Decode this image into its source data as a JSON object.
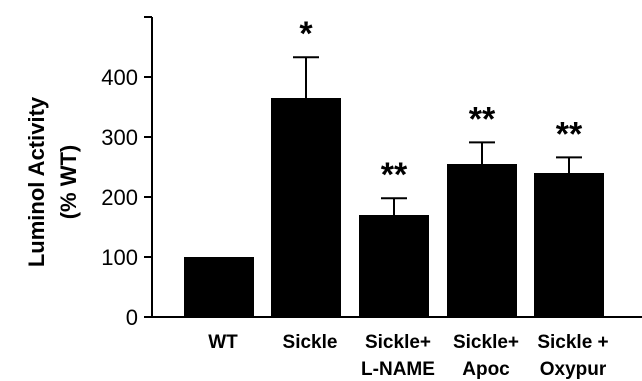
{
  "chart_data": {
    "type": "bar",
    "ylabel_lines": [
      "Luminol Activity",
      "(% WT)"
    ],
    "categories": [
      [
        "WT"
      ],
      [
        "Sickle"
      ],
      [
        "Sickle+",
        "L-NAME"
      ],
      [
        "Sickle+",
        "Apoc"
      ],
      [
        "Sickle +",
        "Oxypur"
      ]
    ],
    "values": [
      100,
      365,
      170,
      255,
      240
    ],
    "errors": [
      0,
      68,
      28,
      36,
      26
    ],
    "significance": [
      "",
      "*",
      "**",
      "**",
      "**"
    ],
    "ylim": [
      0,
      500
    ],
    "yticks": [
      0,
      100,
      200,
      300,
      400
    ],
    "bar_color": "#000000",
    "grid": false
  }
}
